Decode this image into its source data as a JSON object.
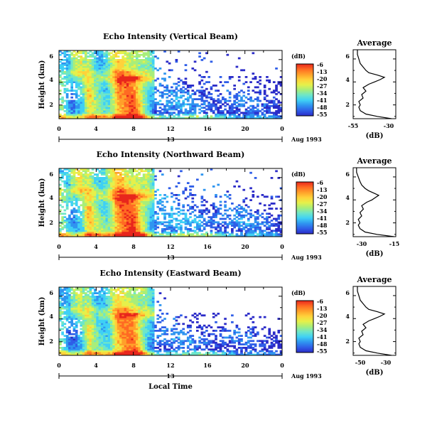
{
  "colors": [
    "#2b2bc8",
    "#2f5ee8",
    "#2f95f0",
    "#3fd0f5",
    "#6ee6c8",
    "#a8ee7a",
    "#e6f04a",
    "#ffd23a",
    "#ffa02a",
    "#ff6a22",
    "#e8261c"
  ],
  "chart_data": [
    {
      "type": "heatmap",
      "title": "Echo Intensity (Vertical Beam)",
      "xlabel": "",
      "ylabel": "Height (km)",
      "x_ticks": [
        "0",
        "4",
        "8",
        "12",
        "16",
        "20",
        "0"
      ],
      "date_label": "13",
      "date_suffix": "Aug 1993",
      "y_ticks": [
        "2",
        "4",
        "6"
      ],
      "xlim": [
        0,
        24
      ],
      "ylim": [
        0.8,
        6.8
      ],
      "colorbar": {
        "unit": "(dB)",
        "ticks": [
          "-6",
          "-13",
          "-20",
          "-27",
          "-34",
          "-41",
          "-48",
          "-55"
        ]
      },
      "average": {
        "title": "Average",
        "xlabel": "(dB)",
        "x_ticks": [
          "-55",
          "-30"
        ],
        "xlim": [
          -55,
          -25
        ],
        "height": [
          0.8,
          1.0,
          1.2,
          1.5,
          1.8,
          2.0,
          2.3,
          2.6,
          2.9,
          3.2,
          3.5,
          3.8,
          4.0,
          4.2,
          4.4,
          4.6,
          4.8,
          5.0,
          5.3,
          5.6,
          6.0,
          6.4,
          6.8
        ],
        "db": [
          -28,
          -38,
          -46,
          -50,
          -51,
          -50,
          -51,
          -48,
          -49,
          -46,
          -48,
          -44,
          -40,
          -36,
          -33,
          -38,
          -44,
          -46,
          -48,
          -50,
          -51,
          -52,
          -52
        ]
      }
    },
    {
      "type": "heatmap",
      "title": "Echo Intensity (Northward Beam)",
      "xlabel": "",
      "ylabel": "Height (km)",
      "x_ticks": [
        "0",
        "4",
        "8",
        "12",
        "16",
        "20",
        "0"
      ],
      "date_label": "13",
      "date_suffix": "Aug 1993",
      "y_ticks": [
        "2",
        "4",
        "6"
      ],
      "xlim": [
        0,
        24
      ],
      "ylim": [
        0.8,
        6.8
      ],
      "colorbar": {
        "unit": "(dB)",
        "ticks": [
          "-6",
          "-13",
          "-20",
          "-27",
          "-34",
          "-41",
          "-48",
          "-55"
        ]
      },
      "average": {
        "title": "Average",
        "xlabel": "(dB)",
        "x_ticks": [
          "-30",
          "-15"
        ],
        "xlim": [
          -40,
          -15
        ],
        "height": [
          0.8,
          1.0,
          1.2,
          1.5,
          1.8,
          2.0,
          2.3,
          2.6,
          2.9,
          3.2,
          3.5,
          3.8,
          4.0,
          4.2,
          4.4,
          4.6,
          4.8,
          5.0,
          5.3,
          5.6,
          6.0,
          6.4,
          6.8
        ],
        "db": [
          -16,
          -26,
          -33,
          -36,
          -37,
          -36,
          -37,
          -35,
          -36,
          -34,
          -35,
          -32,
          -29,
          -27,
          -25,
          -28,
          -31,
          -33,
          -35,
          -36,
          -37,
          -38,
          -38
        ]
      }
    },
    {
      "type": "heatmap",
      "title": "Echo Intensity (Eastward Beam)",
      "xlabel": "Local Time",
      "ylabel": "Height (km)",
      "x_ticks": [
        "0",
        "4",
        "8",
        "12",
        "16",
        "20",
        "0"
      ],
      "date_label": "13",
      "date_suffix": "Aug 1993",
      "y_ticks": [
        "2",
        "4",
        "6"
      ],
      "xlim": [
        0,
        24
      ],
      "ylim": [
        0.8,
        6.8
      ],
      "colorbar": {
        "unit": "(dB)",
        "ticks": [
          "-6",
          "-13",
          "-20",
          "-27",
          "-34",
          "-41",
          "-48",
          "-55"
        ]
      },
      "average": {
        "title": "Average",
        "xlabel": "(dB)",
        "x_ticks": [
          "-50",
          "-30"
        ],
        "xlim": [
          -55,
          -25
        ],
        "height": [
          0.8,
          1.0,
          1.2,
          1.5,
          1.8,
          2.0,
          2.3,
          2.6,
          2.9,
          3.2,
          3.5,
          3.8,
          4.0,
          4.2,
          4.4,
          4.6,
          4.8,
          5.0,
          5.3,
          5.6,
          6.0,
          6.4,
          6.8
        ],
        "db": [
          -28,
          -38,
          -46,
          -50,
          -51,
          -50,
          -51,
          -48,
          -49,
          -46,
          -48,
          -44,
          -40,
          -36,
          -33,
          -38,
          -44,
          -46,
          -48,
          -50,
          -51,
          -52,
          -52
        ]
      }
    }
  ]
}
